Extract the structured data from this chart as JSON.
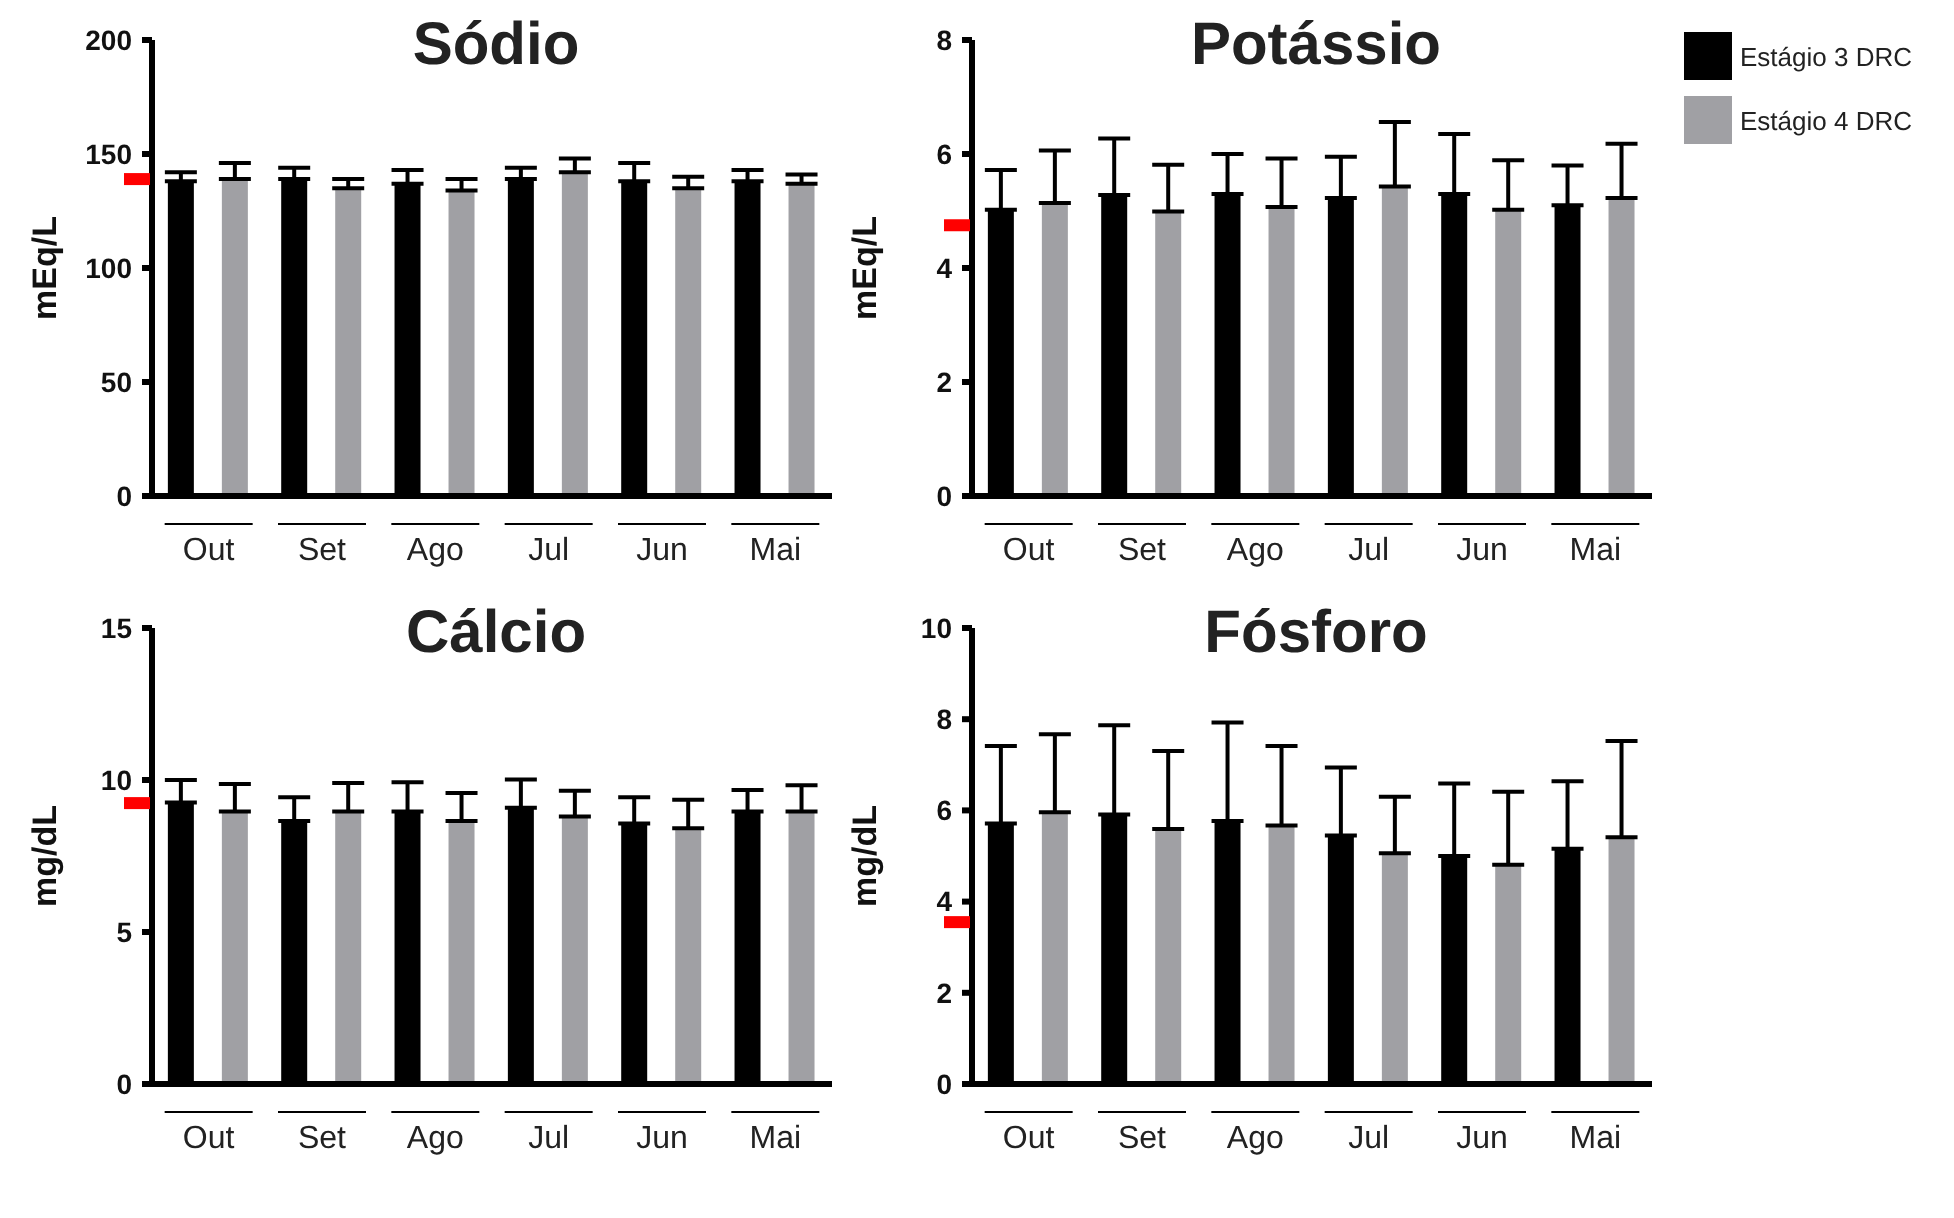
{
  "chart_data": [
    {
      "type": "bar",
      "title": "Sódio",
      "ylabel": "mEq/L",
      "categories": [
        "Out",
        "Set",
        "Ago",
        "Jul",
        "Jun",
        "Mai"
      ],
      "ylim": [
        0,
        200
      ],
      "yticks": [
        0,
        50,
        100,
        {
          "value": 139,
          "label": null
        },
        150,
        200
      ],
      "grid": false,
      "series": [
        {
          "color": "#000000",
          "values": [
            138,
            139,
            137,
            139,
            138,
            138
          ],
          "errors": [
            [
              138,
              142
            ],
            [
              139,
              144
            ],
            [
              137,
              143
            ],
            [
              139,
              144
            ],
            [
              138,
              146
            ],
            [
              138,
              143
            ]
          ]
        },
        {
          "color": "#a0a0a4",
          "values": [
            139,
            135,
            134,
            142,
            135,
            137
          ],
          "errors": [
            [
              139,
              146
            ],
            [
              135,
              139
            ],
            [
              134,
              139
            ],
            [
              142,
              148
            ],
            [
              135,
              140
            ],
            [
              137,
              141
            ]
          ]
        }
      ]
    },
    {
      "type": "bar",
      "title": "Potássio",
      "ylabel": "mEq/L",
      "categories": [
        "Out",
        "Set",
        "Ago",
        "Jul",
        "Jun",
        "Mai"
      ],
      "ylim": [
        0,
        8
      ],
      "yticks": [
        0,
        2,
        4,
        {
          "value": 4.75,
          "label": null
        },
        6,
        8
      ],
      "grid": false,
      "legend": "right",
      "series": [
        {
          "name": "Estágio 3 DRC",
          "color": "#000000",
          "values": [
            5.02,
            5.28,
            5.3,
            5.23,
            5.3,
            5.1
          ],
          "errors": [
            [
              5.02,
              5.72
            ],
            [
              5.28,
              6.27
            ],
            [
              5.3,
              6.0
            ],
            [
              5.23,
              5.95
            ],
            [
              5.3,
              6.35
            ],
            [
              5.1,
              5.8
            ]
          ]
        },
        {
          "name": "Estágio 4 DRC",
          "color": "#a0a0a4",
          "values": [
            5.14,
            4.99,
            5.07,
            5.43,
            5.02,
            5.23
          ],
          "errors": [
            [
              5.14,
              6.06
            ],
            [
              4.99,
              5.81
            ],
            [
              5.07,
              5.92
            ],
            [
              5.43,
              6.56
            ],
            [
              5.02,
              5.89
            ],
            [
              5.23,
              6.18
            ]
          ]
        }
      ]
    },
    {
      "type": "bar",
      "title": "Cálcio",
      "ylabel": "mg/dL",
      "categories": [
        "Out",
        "Set",
        "Ago",
        "Jul",
        "Jun",
        "Mai"
      ],
      "ylim": [
        0,
        15
      ],
      "yticks": [
        0,
        5,
        {
          "value": 9.24,
          "label": null
        },
        10,
        15
      ],
      "grid": false,
      "series": [
        {
          "color": "#000000",
          "values": [
            9.26,
            8.65,
            8.96,
            9.09,
            8.57,
            8.96
          ],
          "errors": [
            [
              9.26,
              10.0
            ],
            [
              8.65,
              9.43
            ],
            [
              8.96,
              9.93
            ],
            [
              9.09,
              10.02
            ],
            [
              8.57,
              9.43
            ],
            [
              8.96,
              9.67
            ]
          ]
        },
        {
          "color": "#a0a0a4",
          "values": [
            8.96,
            8.96,
            8.65,
            8.8,
            8.41,
            8.96
          ],
          "errors": [
            [
              8.96,
              9.87
            ],
            [
              8.96,
              9.9
            ],
            [
              8.65,
              9.57
            ],
            [
              8.8,
              9.65
            ],
            [
              8.41,
              9.35
            ],
            [
              8.96,
              9.83
            ]
          ]
        }
      ]
    },
    {
      "type": "bar",
      "title": "Fósforo",
      "ylabel": "mg/dL",
      "categories": [
        "Out",
        "Set",
        "Ago",
        "Jul",
        "Jun",
        "Mai"
      ],
      "ylim": [
        0,
        10
      ],
      "yticks": [
        0,
        2,
        {
          "value": 3.55,
          "label": null
        },
        4,
        6,
        8,
        10
      ],
      "grid": false,
      "series": [
        {
          "color": "#000000",
          "values": [
            5.71,
            5.91,
            5.77,
            5.45,
            5.0,
            5.16
          ],
          "errors": [
            [
              5.71,
              7.41
            ],
            [
              5.91,
              7.87
            ],
            [
              5.77,
              7.93
            ],
            [
              5.45,
              6.94
            ],
            [
              5.0,
              6.59
            ],
            [
              5.16,
              6.64
            ]
          ]
        },
        {
          "color": "#a0a0a4",
          "values": [
            5.96,
            5.59,
            5.67,
            5.06,
            4.81,
            5.41
          ],
          "errors": [
            [
              5.96,
              7.67
            ],
            [
              5.59,
              7.3
            ],
            [
              5.67,
              7.41
            ],
            [
              5.06,
              6.3
            ],
            [
              4.81,
              6.41
            ],
            [
              5.41,
              7.52
            ]
          ]
        }
      ]
    }
  ]
}
